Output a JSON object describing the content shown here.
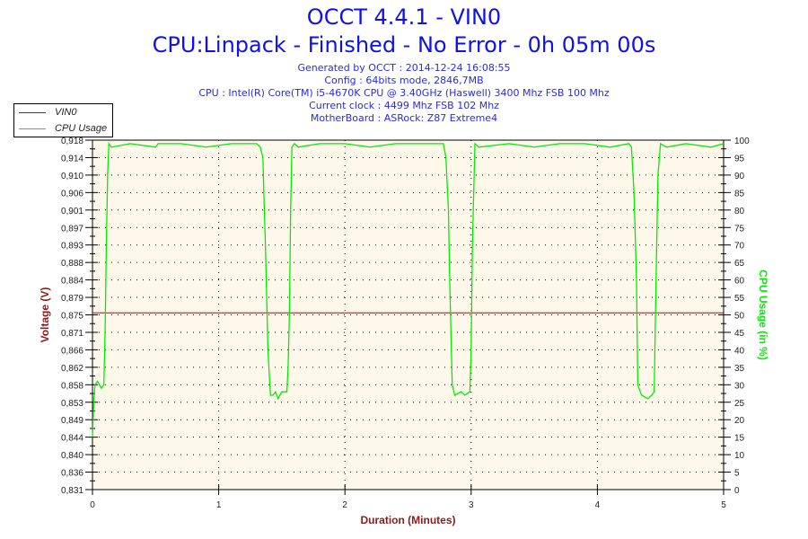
{
  "header": {
    "title": "OCCT 4.4.1 - VIN0",
    "subtitle": "CPU:Linpack - Finished - No Error - 0h 05m 00s",
    "info": [
      "Generated by OCCT : 2014-12-24 16:08:55",
      "Config : 64bits mode, 2846,7MB",
      "CPU : Intel(R) Core(TM) i5-4670K CPU @ 3.40GHz (Haswell) 3400 Mhz FSB 100 Mhz",
      "Current clock : 4499 Mhz FSB 102 Mhz",
      "MotherBoard : ASRock: Z87 Extreme4"
    ]
  },
  "chart_data": {
    "type": "line",
    "xlabel": "Duration (Minutes)",
    "ylabel": "Voltage (V)",
    "y2label": "CPU Usage (in %)",
    "xlim": [
      0,
      5
    ],
    "ylim": [
      0.831,
      0.918
    ],
    "y2lim": [
      0,
      100
    ],
    "x_ticks": [
      "0",
      "1",
      "2",
      "3",
      "4",
      "5"
    ],
    "y_ticks": [
      "0,831",
      "0,836",
      "0,840",
      "0,844",
      "0,849",
      "0,853",
      "0,858",
      "0,862",
      "0,866",
      "0,871",
      "0,875",
      "0,879",
      "0,884",
      "0,888",
      "0,893",
      "0,897",
      "0,901",
      "0,906",
      "0,910",
      "0,914",
      "0,918"
    ],
    "y2_ticks": [
      "0",
      "5",
      "10",
      "15",
      "20",
      "25",
      "30",
      "35",
      "40",
      "45",
      "50",
      "55",
      "60",
      "65",
      "70",
      "75",
      "80",
      "85",
      "90",
      "95",
      "100"
    ],
    "grid": true,
    "legend_placement": "top-left",
    "colors": {
      "vin0": "#8b1a1a",
      "cpu": "#00ee00",
      "background": "#fdf8ea",
      "title": "#1010ee"
    },
    "series": [
      {
        "name": "VIN0",
        "axis": "left",
        "x": [
          0,
          5
        ],
        "y": [
          0.875,
          0.875
        ]
      },
      {
        "name": "CPU Usage",
        "axis": "right",
        "x": [
          0,
          0.01,
          0.02,
          0.04,
          0.07,
          0.09,
          0.1,
          0.11,
          0.12,
          0.13,
          0.15,
          0.3,
          0.5,
          0.52,
          0.7,
          0.9,
          1.1,
          1.3,
          1.33,
          1.35,
          1.36,
          1.37,
          1.38,
          1.39,
          1.41,
          1.43,
          1.45,
          1.47,
          1.5,
          1.54,
          1.55,
          1.56,
          1.57,
          1.58,
          1.6,
          1.63,
          1.8,
          2.0,
          2.2,
          2.4,
          2.6,
          2.78,
          2.8,
          2.82,
          2.83,
          2.85,
          2.87,
          2.92,
          2.95,
          2.99,
          3.0,
          3.01,
          3.03,
          3.06,
          3.3,
          3.5,
          3.7,
          3.9,
          4.1,
          4.25,
          4.27,
          4.29,
          4.31,
          4.32,
          4.35,
          4.4,
          4.43,
          4.45,
          4.46,
          4.48,
          4.5,
          4.55,
          4.7,
          4.9,
          5.0
        ],
        "y": [
          15,
          25,
          30,
          31,
          29,
          30,
          45,
          70,
          90,
          99,
          98,
          99,
          98,
          99,
          99,
          98,
          99,
          99,
          98,
          95,
          82,
          70,
          55,
          40,
          27,
          27,
          28,
          26,
          28,
          28,
          35,
          50,
          80,
          98,
          99,
          98,
          99,
          99,
          98,
          99,
          99,
          99,
          95,
          80,
          60,
          30,
          27,
          28,
          27,
          28,
          40,
          70,
          99,
          98,
          99,
          98,
          99,
          99,
          98,
          99,
          98,
          85,
          60,
          30,
          27,
          26,
          27,
          28,
          50,
          90,
          99,
          98,
          99,
          98,
          99
        ]
      }
    ]
  }
}
